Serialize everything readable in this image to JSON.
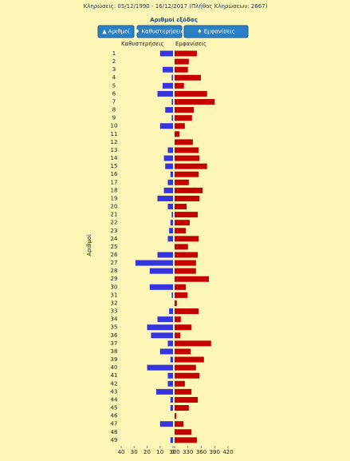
{
  "header": "Κληρώσεις:   05/12/1990 - 16/12/2017  (Πλήθος Κληρώσεων: 2667)",
  "buttons": [
    "▲ Αριθμοί",
    "♦ Καθυστερήσεις",
    "♦ Εμφανίσεις"
  ],
  "chart_data": {
    "type": "butterfly",
    "title": "Αριθμοί εξόδας",
    "y_label": "Αριθμοί",
    "categories": [
      "1",
      "2",
      "3",
      "4",
      "5",
      "6",
      "7",
      "8",
      "9",
      "10",
      "11",
      "12",
      "13",
      "14",
      "15",
      "16",
      "17",
      "18",
      "19",
      "20",
      "21",
      "22",
      "23",
      "24",
      "25",
      "26",
      "27",
      "28",
      "29",
      "30",
      "31",
      "32",
      "33",
      "34",
      "35",
      "36",
      "37",
      "38",
      "39",
      "40",
      "41",
      "42",
      "43",
      "44",
      "45",
      "46",
      "47",
      "48",
      "49"
    ],
    "series": [
      {
        "name": "Καθυστερήσεις",
        "color": "#3535e0",
        "xlim": [
          40,
          0
        ],
        "xticks": [
          40,
          30,
          20,
          10,
          0
        ],
        "values": [
          10,
          0,
          8,
          1,
          8,
          12,
          1,
          6,
          1,
          10,
          0,
          0,
          4,
          7,
          6,
          2,
          4,
          7,
          12,
          4,
          1,
          2,
          3,
          4,
          0,
          12,
          29,
          18,
          0,
          18,
          1,
          0,
          3,
          12,
          20,
          17,
          4,
          10,
          2,
          20,
          4,
          4,
          13,
          2,
          2,
          0,
          10,
          0,
          2
        ]
      },
      {
        "name": "Εμφανίσεις",
        "color": "#c40000",
        "xlim": [
          300,
          420
        ],
        "xticks": [
          300,
          330,
          360,
          390,
          420
        ],
        "values": [
          350,
          332,
          330,
          359,
          321,
          373,
          390,
          343,
          339,
          323,
          311,
          341,
          354,
          356,
          373,
          354,
          332,
          363,
          356,
          327,
          352,
          334,
          325,
          354,
          330,
          352,
          348,
          348,
          377,
          325,
          329,
          305,
          354,
          314,
          338,
          313,
          382,
          336,
          366,
          348,
          356,
          323,
          338,
          352,
          332,
          304,
          320,
          338,
          350
        ]
      }
    ]
  }
}
